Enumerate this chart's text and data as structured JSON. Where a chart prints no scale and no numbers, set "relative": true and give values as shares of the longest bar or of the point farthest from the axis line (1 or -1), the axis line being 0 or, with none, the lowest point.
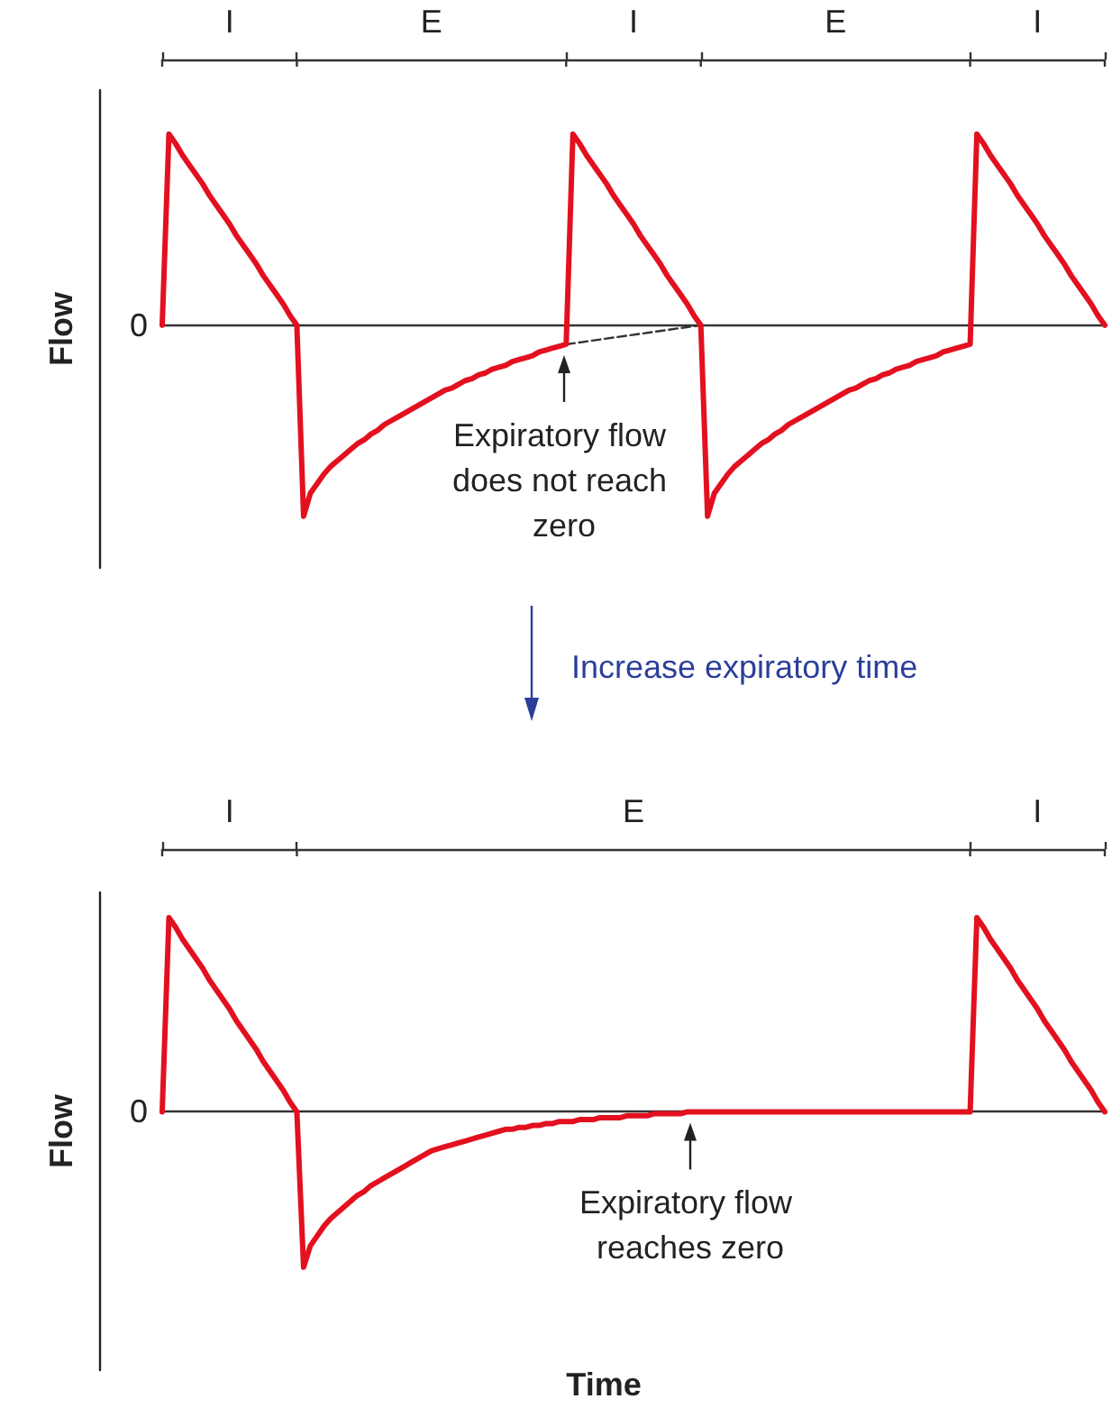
{
  "chart_data": [
    {
      "type": "line",
      "ylabel": "Flow",
      "relative": true,
      "tick_labels": "x",
      "grid": false,
      "marker": "none",
      "categories": [
        null,
        null,
        null,
        null,
        null,
        null,
        null,
        null,
        null,
        null,
        "I",
        null,
        null,
        null,
        null,
        null,
        null,
        null,
        null,
        null,
        null,
        null,
        null,
        null,
        null,
        null,
        null,
        null,
        null,
        null,
        null,
        null,
        null,
        null,
        null,
        null,
        null,
        null,
        null,
        null,
        "E",
        null,
        null,
        null,
        null,
        null,
        null,
        null,
        null,
        null,
        null,
        null,
        null,
        null,
        null,
        null,
        null,
        null,
        null,
        null,
        null,
        null,
        null,
        null,
        null,
        null,
        null,
        null,
        null,
        null,
        "I",
        null,
        null,
        null,
        null,
        null,
        null,
        null,
        null,
        null,
        null,
        null,
        null,
        null,
        null,
        null,
        null,
        null,
        null,
        null,
        null,
        null,
        null,
        null,
        null,
        null,
        null,
        null,
        null,
        null,
        "E",
        null,
        null,
        null,
        null,
        null,
        null,
        null,
        null,
        null,
        null,
        null,
        null,
        null,
        null,
        null,
        null,
        null,
        null,
        null,
        null,
        null,
        null,
        null,
        null,
        null,
        null,
        null,
        null,
        null,
        "I",
        null,
        null,
        null,
        null,
        null,
        null,
        null,
        null,
        null,
        null
      ],
      "series": [
        {
          "color": "#e3101f",
          "line_style": "solid",
          "values": [
            0,
            1,
            0.95,
            0.89,
            0.84,
            0.79,
            0.74,
            0.68,
            0.63,
            0.58,
            0.53,
            0.47,
            0.42,
            0.37,
            0.32,
            0.26,
            0.21,
            0.16,
            0.11,
            0.05,
            0,
            -1,
            -0.88,
            -0.83,
            -0.78,
            -0.74,
            -0.71,
            -0.68,
            -0.65,
            -0.62,
            -0.6,
            -0.57,
            -0.55,
            -0.52,
            -0.5,
            -0.48,
            -0.46,
            -0.44,
            -0.42,
            -0.4,
            -0.38,
            -0.36,
            -0.34,
            -0.33,
            -0.31,
            -0.29,
            -0.28,
            -0.26,
            -0.25,
            -0.23,
            -0.22,
            -0.21,
            -0.19,
            -0.18,
            -0.17,
            -0.16,
            -0.14,
            -0.13,
            -0.12,
            -0.11,
            -0.1,
            1,
            0.95,
            0.89,
            0.84,
            0.79,
            0.74,
            0.68,
            0.63,
            0.58,
            0.53,
            0.47,
            0.42,
            0.37,
            0.32,
            0.26,
            0.21,
            0.16,
            0.11,
            0.05,
            0,
            -1,
            -0.88,
            -0.83,
            -0.78,
            -0.74,
            -0.71,
            -0.68,
            -0.65,
            -0.62,
            -0.6,
            -0.57,
            -0.55,
            -0.52,
            -0.5,
            -0.48,
            -0.46,
            -0.44,
            -0.42,
            -0.4,
            -0.38,
            -0.36,
            -0.34,
            -0.33,
            -0.31,
            -0.29,
            -0.28,
            -0.26,
            -0.25,
            -0.23,
            -0.22,
            -0.21,
            -0.19,
            -0.18,
            -0.17,
            -0.16,
            -0.14,
            -0.13,
            -0.12,
            -0.11,
            -0.1,
            1,
            0.95,
            0.89,
            0.84,
            0.79,
            0.74,
            0.68,
            0.63,
            0.58,
            0.53,
            0.47,
            0.42,
            0.37,
            0.32,
            0.26,
            0.21,
            0.16,
            0.11,
            0.05,
            0
          ]
        },
        {
          "color": "#333333",
          "line_style": "dashed",
          "values": [
            null,
            null,
            null,
            null,
            null,
            null,
            null,
            null,
            null,
            null,
            null,
            null,
            null,
            null,
            null,
            null,
            null,
            null,
            null,
            null,
            null,
            null,
            null,
            null,
            null,
            null,
            null,
            null,
            null,
            null,
            null,
            null,
            null,
            null,
            null,
            null,
            null,
            null,
            null,
            null,
            null,
            null,
            null,
            null,
            null,
            null,
            null,
            null,
            null,
            null,
            null,
            null,
            null,
            null,
            null,
            null,
            null,
            null,
            null,
            null,
            -0.1,
            null,
            null,
            null,
            null,
            null,
            null,
            null,
            null,
            null,
            null,
            null,
            null,
            null,
            null,
            null,
            null,
            null,
            null,
            null,
            0,
            null,
            null,
            null,
            null,
            null,
            null,
            null,
            null,
            null,
            null,
            null,
            null,
            null,
            null,
            null,
            null,
            null,
            null,
            null,
            null,
            null,
            null,
            null,
            null,
            null,
            null,
            null,
            null,
            null,
            null,
            null,
            null,
            null,
            null,
            null,
            null,
            null,
            null,
            null,
            null,
            null,
            null,
            null,
            null,
            null,
            null,
            null,
            null,
            null,
            null,
            null,
            null,
            null,
            null,
            null,
            null,
            null,
            null,
            null,
            null
          ]
        }
      ],
      "ref_lines": [
        {
          "axis": "y",
          "value": 0,
          "label": "0",
          "color": "#333333"
        }
      ],
      "annotations": [
        {
          "text": "Expiratory flow does not reach zero",
          "y": -0.1
        }
      ]
    },
    {
      "type": "line",
      "title": "Increase expiratory time",
      "ylabel": "Flow",
      "xlabel": "Time",
      "relative": true,
      "tick_labels": "x",
      "grid": false,
      "marker": "none",
      "categories": [
        null,
        null,
        null,
        null,
        null,
        null,
        null,
        null,
        null,
        null,
        "I",
        null,
        null,
        null,
        null,
        null,
        null,
        null,
        null,
        null,
        null,
        null,
        null,
        null,
        null,
        null,
        null,
        null,
        null,
        null,
        null,
        null,
        null,
        null,
        null,
        null,
        null,
        null,
        null,
        null,
        null,
        null,
        null,
        null,
        null,
        null,
        null,
        null,
        null,
        null,
        null,
        null,
        null,
        null,
        null,
        null,
        null,
        null,
        null,
        null,
        null,
        null,
        null,
        null,
        null,
        null,
        null,
        null,
        null,
        null,
        "E",
        null,
        null,
        null,
        null,
        null,
        null,
        null,
        null,
        null,
        null,
        null,
        null,
        null,
        null,
        null,
        null,
        null,
        null,
        null,
        null,
        null,
        null,
        null,
        null,
        null,
        null,
        null,
        null,
        null,
        null,
        null,
        null,
        null,
        null,
        null,
        null,
        null,
        null,
        null,
        null,
        null,
        null,
        null,
        null,
        null,
        null,
        null,
        null,
        null,
        null,
        null,
        null,
        null,
        null,
        null,
        null,
        null,
        null,
        null,
        "I",
        null,
        null,
        null,
        null,
        null,
        null,
        null,
        null,
        null,
        null
      ],
      "series": [
        {
          "color": "#e3101f",
          "line_style": "solid",
          "values": [
            0,
            1,
            0.95,
            0.89,
            0.84,
            0.79,
            0.74,
            0.68,
            0.63,
            0.58,
            0.53,
            0.47,
            0.42,
            0.37,
            0.32,
            0.26,
            0.21,
            0.16,
            0.11,
            0.05,
            0,
            -0.8,
            -0.69,
            -0.64,
            -0.59,
            -0.55,
            -0.52,
            -0.49,
            -0.46,
            -0.43,
            -0.41,
            -0.38,
            -0.36,
            -0.34,
            -0.32,
            -0.3,
            -0.28,
            -0.26,
            -0.24,
            -0.22,
            -0.2,
            -0.19,
            -0.18,
            -0.17,
            -0.16,
            -0.15,
            -0.14,
            -0.13,
            -0.12,
            -0.11,
            -0.1,
            -0.09,
            -0.09,
            -0.08,
            -0.08,
            -0.07,
            -0.07,
            -0.06,
            -0.06,
            -0.05,
            -0.05,
            -0.05,
            -0.04,
            -0.04,
            -0.04,
            -0.03,
            -0.03,
            -0.03,
            -0.03,
            -0.02,
            -0.02,
            -0.02,
            -0.02,
            -0.01,
            -0.01,
            -0.01,
            -0.01,
            -0.01,
            0,
            0,
            0,
            0,
            0,
            0,
            0,
            0,
            0,
            0,
            0,
            0,
            0,
            0,
            0,
            0,
            0,
            0,
            0,
            0,
            0,
            0,
            0,
            0,
            0,
            0,
            0,
            0,
            0,
            0,
            0,
            0,
            0,
            0,
            0,
            0,
            0,
            0,
            0,
            0,
            0,
            0,
            0,
            1,
            0.95,
            0.89,
            0.84,
            0.79,
            0.74,
            0.68,
            0.63,
            0.58,
            0.53,
            0.47,
            0.42,
            0.37,
            0.32,
            0.26,
            0.21,
            0.16,
            0.11,
            0.05,
            0
          ]
        }
      ],
      "ref_lines": [
        {
          "axis": "y",
          "value": 0,
          "label": "0",
          "color": "#333333"
        }
      ],
      "annotations": [
        {
          "text": "Expiratory flow reaches zero",
          "y": 0
        }
      ]
    }
  ]
}
